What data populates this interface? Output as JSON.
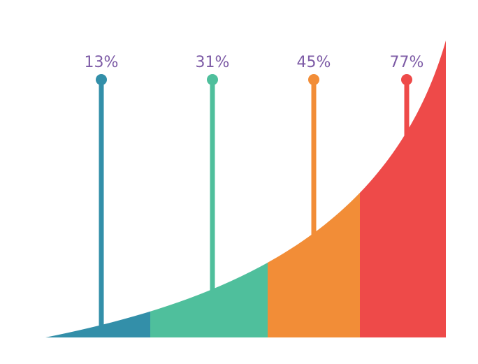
{
  "chart_data": {
    "type": "area",
    "values": [
      13,
      31,
      45,
      77
    ],
    "value_labels": [
      "13%",
      "31%",
      "45%",
      "77%"
    ],
    "colors": [
      "#338fa9",
      "#4fbf9c",
      "#f28d37",
      "#ee4a49"
    ]
  }
}
